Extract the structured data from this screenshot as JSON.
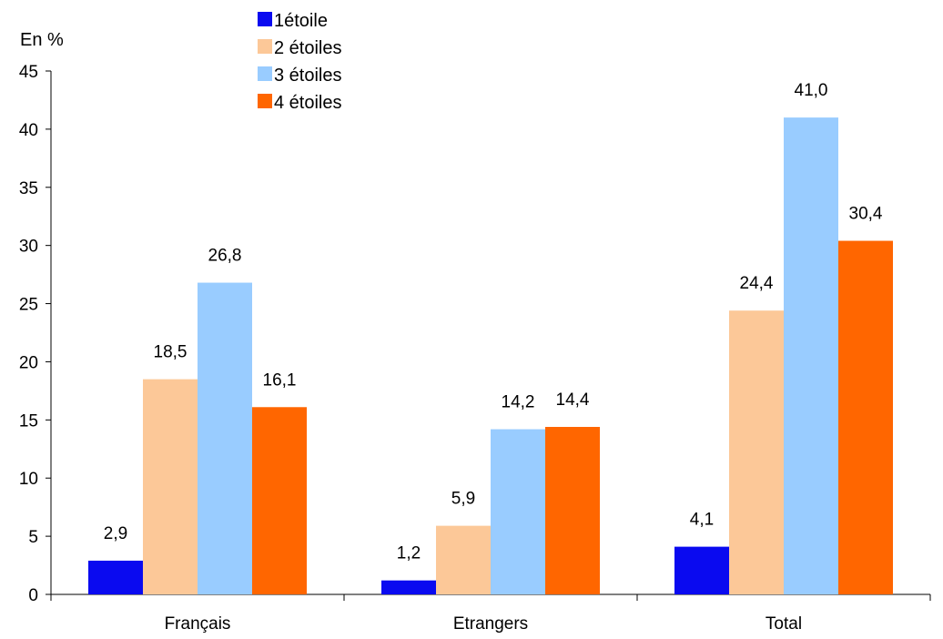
{
  "chart_data": {
    "type": "bar",
    "ylabel": "En %",
    "xlabel": "",
    "ylim": [
      0,
      45
    ],
    "yticks": [
      0,
      5,
      10,
      15,
      20,
      25,
      30,
      35,
      40,
      45
    ],
    "grid": false,
    "legend_position": "top",
    "categories": [
      "Français",
      "Etrangers",
      "Total"
    ],
    "series": [
      {
        "name": "1étoile",
        "color": "#0A0AF0",
        "values": [
          2.9,
          1.2,
          4.1
        ],
        "labels": [
          "2,9",
          "1,2",
          "4,1"
        ]
      },
      {
        "name": "2 étoiles",
        "color": "#FCC898",
        "values": [
          18.5,
          5.9,
          24.4
        ],
        "labels": [
          "18,5",
          "5,9",
          "24,4"
        ]
      },
      {
        "name": "3 étoiles",
        "color": "#99CCFF",
        "values": [
          26.8,
          14.2,
          41.0
        ],
        "labels": [
          "26,8",
          "14,2",
          "41,0"
        ]
      },
      {
        "name": "4 étoiles",
        "color": "#FF6600",
        "values": [
          16.1,
          14.4,
          30.4
        ],
        "labels": [
          "16,1",
          "14,4",
          "30,4"
        ]
      }
    ]
  }
}
